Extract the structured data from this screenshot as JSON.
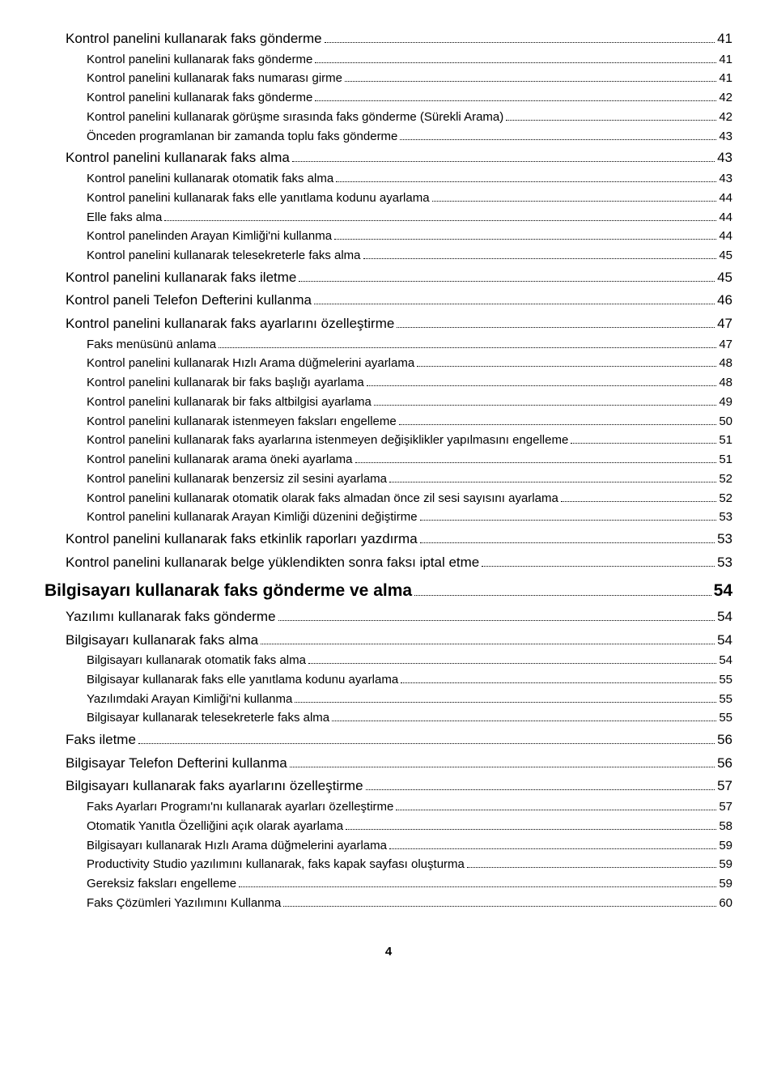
{
  "page_number": "4",
  "toc": [
    {
      "level": 1,
      "label": "Kontrol panelini kullanarak faks gönderme",
      "page": "41"
    },
    {
      "level": 2,
      "label": "Kontrol panelini kullanarak faks gönderme",
      "page": "41"
    },
    {
      "level": 2,
      "label": "Kontrol panelini kullanarak faks numarası girme",
      "page": "41"
    },
    {
      "level": 2,
      "label": "Kontrol panelini kullanarak faks gönderme",
      "page": "42"
    },
    {
      "level": 2,
      "label": "Kontrol panelini kullanarak görüşme sırasında faks gönderme (Sürekli Arama)",
      "page": "42"
    },
    {
      "level": 2,
      "label": "Önceden programlanan bir zamanda toplu faks gönderme",
      "page": "43"
    },
    {
      "level": 1,
      "label": "Kontrol panelini kullanarak faks alma",
      "page": "43"
    },
    {
      "level": 2,
      "label": "Kontrol panelini kullanarak otomatik faks alma",
      "page": "43"
    },
    {
      "level": 2,
      "label": "Kontrol panelini kullanarak faks elle yanıtlama kodunu ayarlama",
      "page": "44"
    },
    {
      "level": 2,
      "label": "Elle faks alma",
      "page": "44"
    },
    {
      "level": 2,
      "label": "Kontrol panelinden Arayan Kimliği'ni kullanma",
      "page": "44"
    },
    {
      "level": 2,
      "label": "Kontrol panelini kullanarak telesekreterle faks alma",
      "page": "45"
    },
    {
      "level": 1,
      "label": "Kontrol panelini kullanarak faks iletme",
      "page": "45"
    },
    {
      "level": 1,
      "label": "Kontrol paneli Telefon Defterini kullanma",
      "page": "46"
    },
    {
      "level": 1,
      "label": "Kontrol panelini kullanarak faks ayarlarını özelleştirme",
      "page": "47"
    },
    {
      "level": 2,
      "label": "Faks menüsünü anlama",
      "page": "47"
    },
    {
      "level": 2,
      "label": "Kontrol panelini kullanarak Hızlı Arama düğmelerini ayarlama",
      "page": "48"
    },
    {
      "level": 2,
      "label": "Kontrol panelini kullanarak bir faks başlığı ayarlama",
      "page": "48"
    },
    {
      "level": 2,
      "label": "Kontrol panelini kullanarak bir faks altbilgisi ayarlama",
      "page": "49"
    },
    {
      "level": 2,
      "label": "Kontrol panelini kullanarak istenmeyen faksları engelleme",
      "page": "50"
    },
    {
      "level": 2,
      "label": "Kontrol panelini kullanarak faks ayarlarına istenmeyen değişiklikler yapılmasını engelleme",
      "page": "51"
    },
    {
      "level": 2,
      "label": "Kontrol panelini kullanarak arama öneki ayarlama",
      "page": "51"
    },
    {
      "level": 2,
      "label": "Kontrol panelini kullanarak benzersiz zil sesini ayarlama",
      "page": "52"
    },
    {
      "level": 2,
      "label": "Kontrol panelini kullanarak otomatik olarak faks almadan önce zil sesi sayısını ayarlama",
      "page": "52"
    },
    {
      "level": 2,
      "label": "Kontrol panelini kullanarak Arayan Kimliği düzenini değiştirme",
      "page": "53"
    },
    {
      "level": 1,
      "label": "Kontrol panelini kullanarak faks etkinlik raporları yazdırma",
      "page": "53"
    },
    {
      "level": 1,
      "label": "Kontrol panelini kullanarak belge yüklendikten sonra faksı iptal etme",
      "page": "53"
    },
    {
      "level": 0,
      "label": "Bilgisayarı kullanarak faks gönderme ve alma",
      "page": "54"
    },
    {
      "level": 1,
      "label": "Yazılımı kullanarak faks gönderme",
      "page": "54"
    },
    {
      "level": 1,
      "label": "Bilgisayarı kullanarak faks alma",
      "page": "54"
    },
    {
      "level": 2,
      "label": "Bilgisayarı kullanarak otomatik faks alma",
      "page": "54"
    },
    {
      "level": 2,
      "label": "Bilgisayar kullanarak faks elle yanıtlama kodunu ayarlama",
      "page": "55"
    },
    {
      "level": 2,
      "label": "Yazılımdaki Arayan Kimliği'ni kullanma",
      "page": "55"
    },
    {
      "level": 2,
      "label": "Bilgisayar kullanarak telesekreterle faks alma",
      "page": "55"
    },
    {
      "level": 1,
      "label": "Faks iletme",
      "page": "56"
    },
    {
      "level": 1,
      "label": "Bilgisayar Telefon Defterini kullanma",
      "page": "56"
    },
    {
      "level": 1,
      "label": "Bilgisayarı kullanarak faks ayarlarını özelleştirme",
      "page": "57"
    },
    {
      "level": 2,
      "label": "Faks Ayarları Programı'nı kullanarak ayarları özelleştirme",
      "page": "57"
    },
    {
      "level": 2,
      "label": "Otomatik Yanıtla Özelliğini açık olarak ayarlama",
      "page": "58"
    },
    {
      "level": 2,
      "label": "Bilgisayarı kullanarak Hızlı Arama düğmelerini ayarlama",
      "page": "59"
    },
    {
      "level": 2,
      "label": "Productivity Studio yazılımını kullanarak, faks kapak sayfası oluşturma",
      "page": "59"
    },
    {
      "level": 2,
      "label": "Gereksiz faksları engelleme",
      "page": "59"
    },
    {
      "level": 2,
      "label": "Faks Çözümleri Yazılımını Kullanma",
      "page": "60"
    }
  ]
}
